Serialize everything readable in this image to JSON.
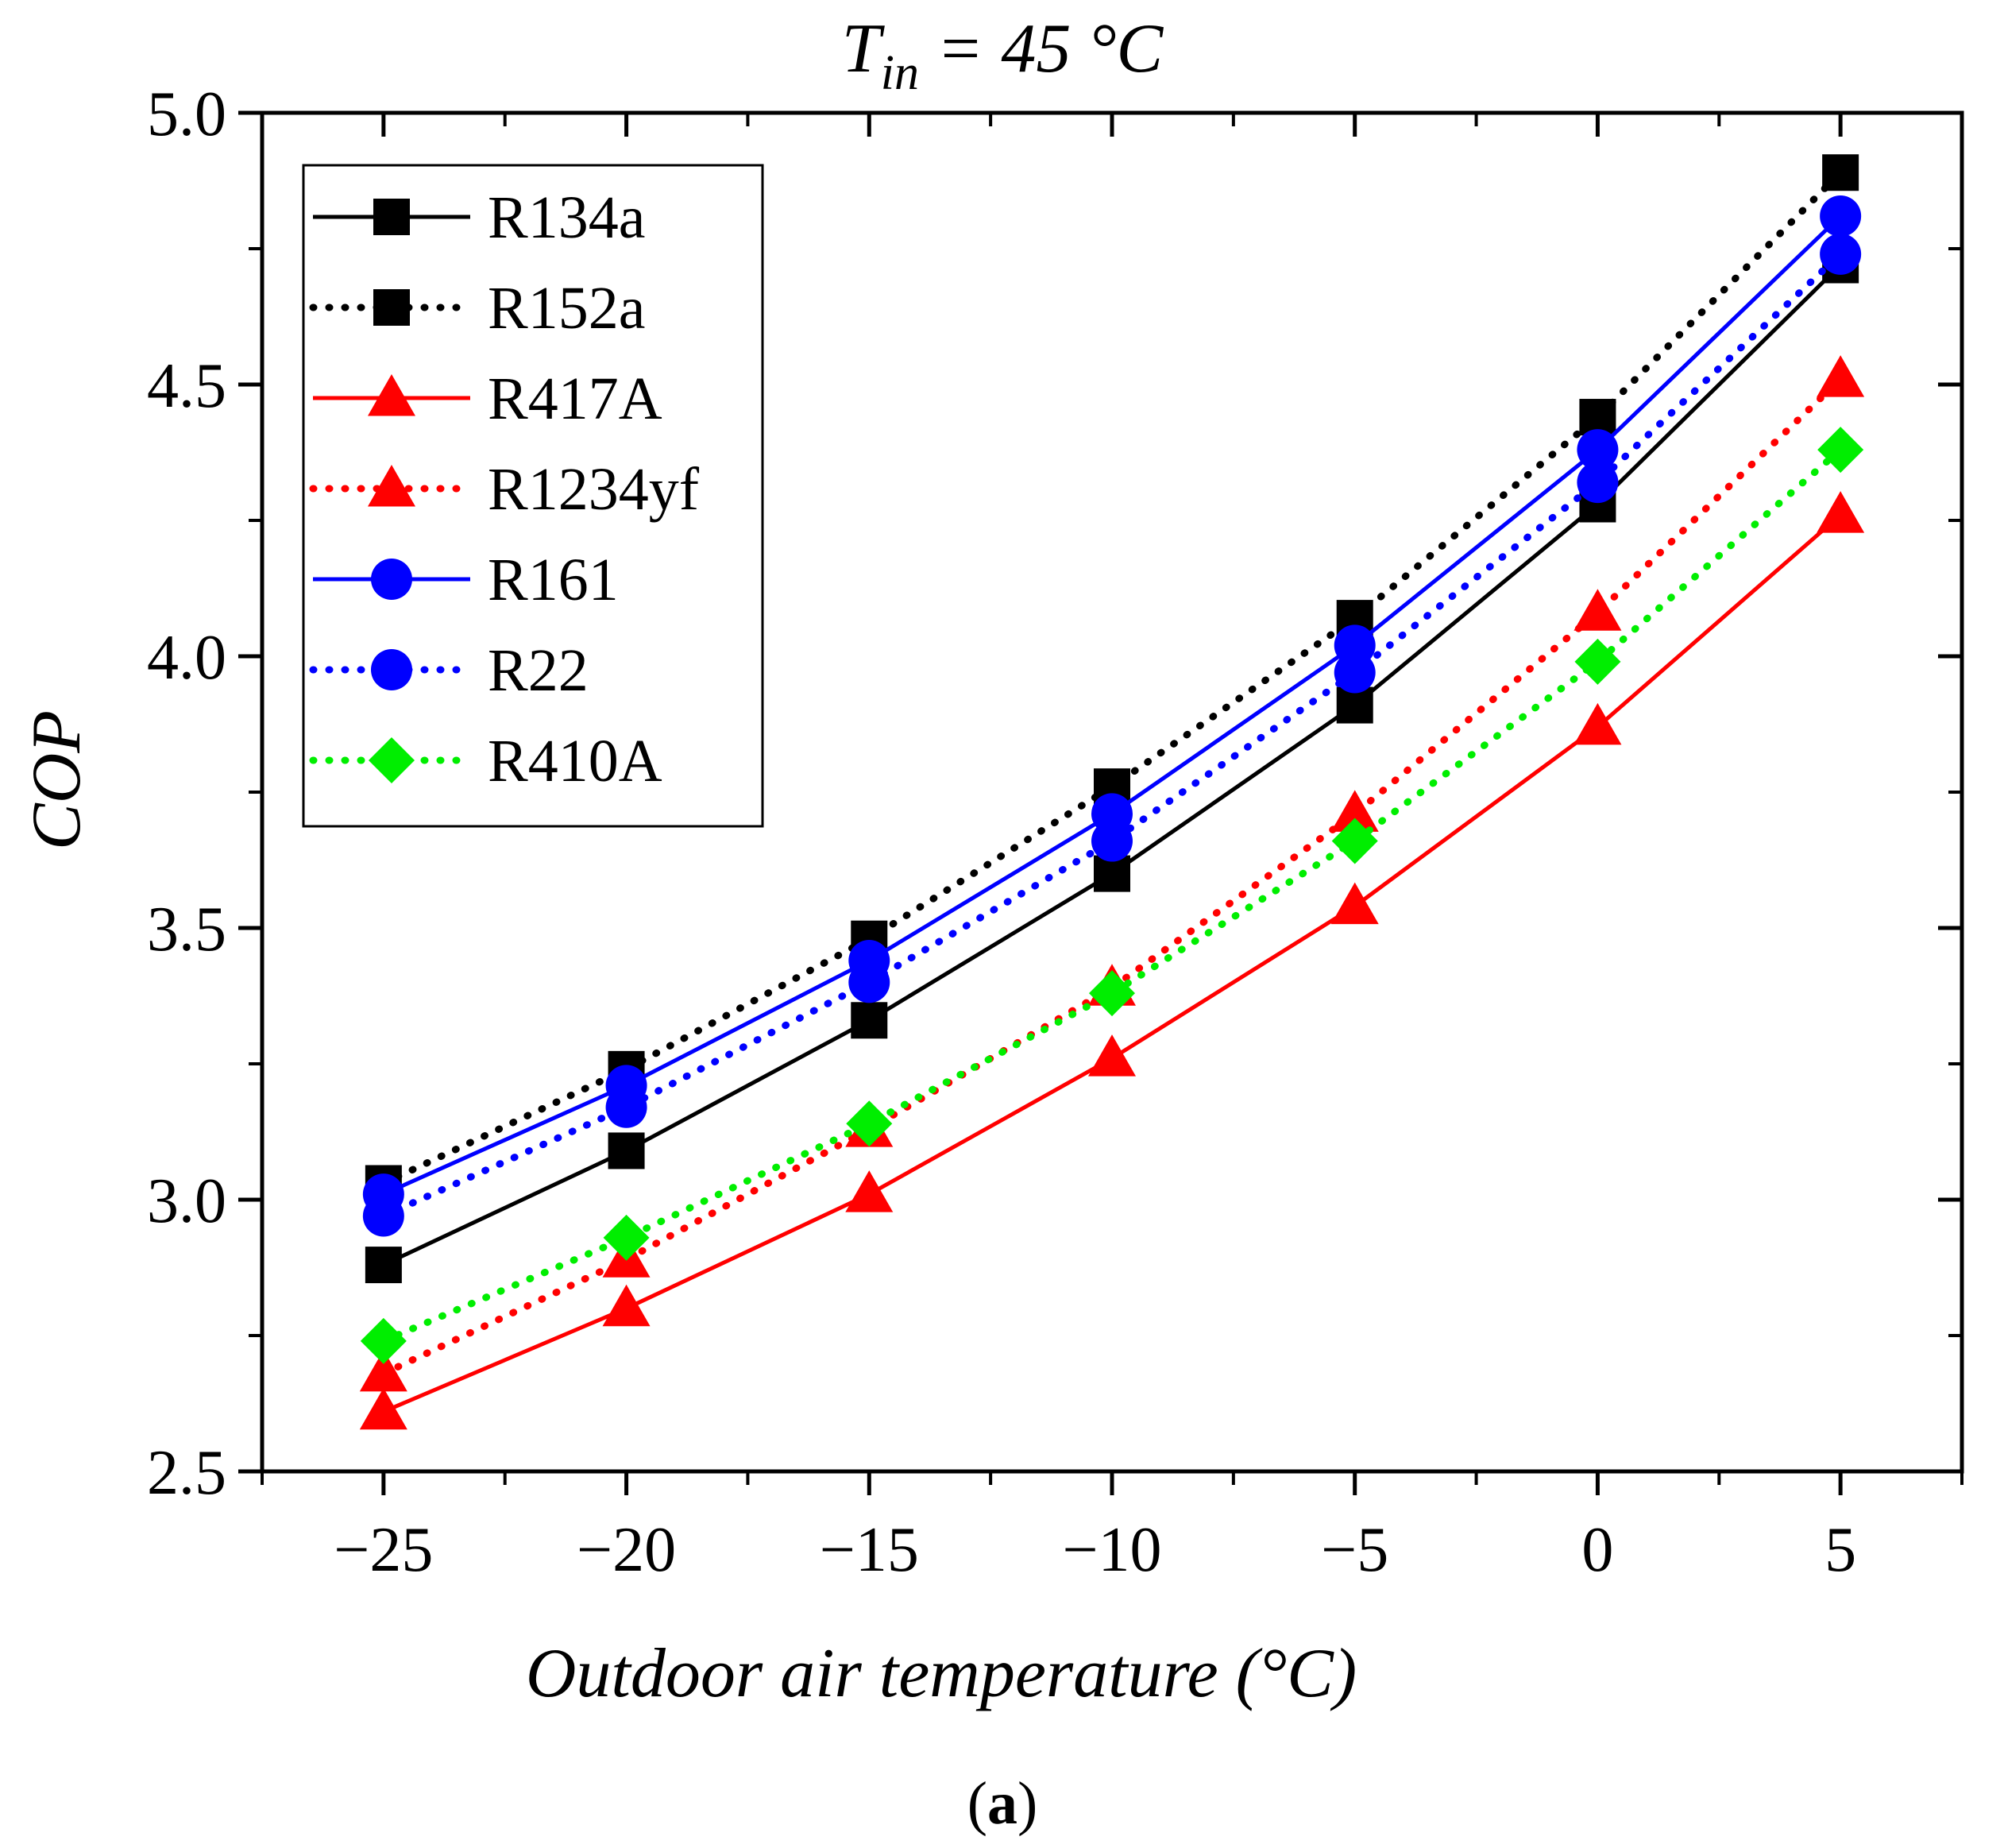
{
  "chart_data": {
    "type": "line",
    "title_main": "T",
    "title_sub": "in",
    "title_rest": " = 45 °C",
    "xlabel": "Outdoor air temperature (°C)",
    "ylabel": "COP",
    "caption_open": "(",
    "caption_letter": "a",
    "caption_close": ")",
    "xlim": [
      -27.5,
      7.5
    ],
    "ylim": [
      2.5,
      5.0
    ],
    "x_ticks": [
      -25,
      -20,
      -15,
      -10,
      -5,
      0,
      5
    ],
    "x_tick_labels": [
      "−25",
      "−20",
      "−15",
      "−10",
      "−5",
      "0",
      "5"
    ],
    "y_ticks": [
      2.5,
      3.0,
      3.5,
      4.0,
      4.5,
      5.0
    ],
    "y_tick_labels": [
      "2.5",
      "3.0",
      "3.5",
      "4.0",
      "4.5",
      "5.0"
    ],
    "legend_position": "top-left",
    "x": [
      -25,
      -20,
      -15,
      -10,
      -5,
      0,
      5
    ],
    "series": [
      {
        "name": "R134a",
        "values": [
          2.88,
          3.09,
          3.33,
          3.6,
          3.91,
          4.28,
          4.72
        ],
        "color": "#000000",
        "dash": "solid",
        "marker": "square"
      },
      {
        "name": "R152a",
        "values": [
          3.03,
          3.24,
          3.48,
          3.76,
          4.07,
          4.44,
          4.89
        ],
        "color": "#000000",
        "dash": "dotted",
        "marker": "square"
      },
      {
        "name": "R417A",
        "values": [
          2.61,
          2.8,
          3.01,
          3.26,
          3.54,
          3.87,
          4.26
        ],
        "color": "#ff0000",
        "dash": "solid",
        "marker": "triangle"
      },
      {
        "name": "R1234yf",
        "values": [
          2.68,
          2.89,
          3.13,
          3.39,
          3.71,
          4.08,
          4.51
        ],
        "color": "#ff0000",
        "dash": "dotted",
        "marker": "triangle"
      },
      {
        "name": "R161",
        "values": [
          3.01,
          3.21,
          3.44,
          3.71,
          4.02,
          4.38,
          4.81
        ],
        "color": "#0000ff",
        "dash": "solid",
        "marker": "circle"
      },
      {
        "name": "R22",
        "values": [
          2.97,
          3.17,
          3.4,
          3.66,
          3.97,
          4.32,
          4.74
        ],
        "color": "#0000ff",
        "dash": "dotted",
        "marker": "circle"
      },
      {
        "name": "R410A",
        "values": [
          2.74,
          2.93,
          3.14,
          3.38,
          3.66,
          3.99,
          4.38
        ],
        "color": "#00ee00",
        "dash": "dotted",
        "marker": "diamond"
      }
    ]
  }
}
